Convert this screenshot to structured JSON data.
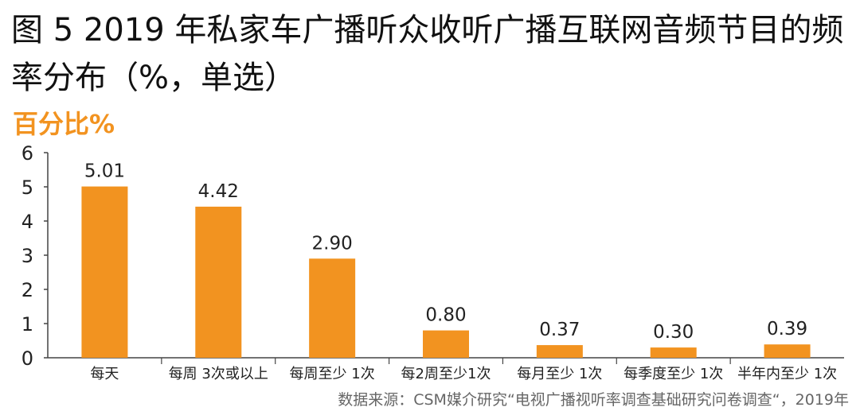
{
  "title": "图 5 2019 年私家车广播听众收听广播互联网音频节目的频率分布（%，单选）",
  "source": "数据来源：CSM媒介研究“电视广播视听率调查基础研究问卷调查“，2019年",
  "colors": {
    "bar": "#f29320",
    "unit": "#f29320",
    "axis": "#444444"
  },
  "chart_data": {
    "type": "bar",
    "title": "图 5 2019 年私家车广播听众收听广播互联网音频节目的频率分布（%，单选）",
    "ylabel": "百分比%",
    "xlabel": "",
    "ylim": [
      0,
      6
    ],
    "yticks": [
      0,
      1,
      2,
      3,
      4,
      5,
      6
    ],
    "grid": false,
    "categories": [
      "每天",
      "每周 3次或以上",
      "每周至少 1次",
      "每2周至少1次",
      "每月至少 1次",
      "每季度至少 1次",
      "半年内至少 1次"
    ],
    "values": [
      5.01,
      4.42,
      2.9,
      0.8,
      0.37,
      0.3,
      0.39
    ],
    "value_labels": [
      "5.01",
      "4.42",
      "2.90",
      "0.80",
      "0.37",
      "0.30",
      "0.39"
    ]
  }
}
